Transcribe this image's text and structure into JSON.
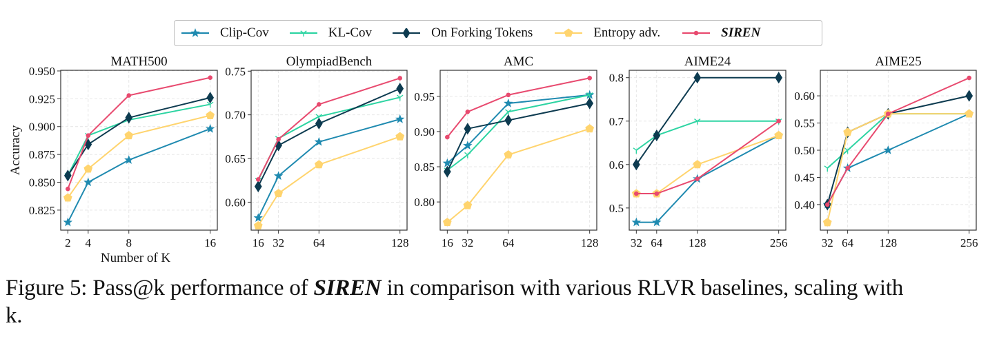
{
  "legend": [
    {
      "name": "Clip-Cov",
      "color": "#1f8ab0",
      "marker": "star"
    },
    {
      "name": "KL-Cov",
      "color": "#2dd4a2",
      "marker": "tri"
    },
    {
      "name": "On Forking Tokens",
      "color": "#0d3b50",
      "marker": "diamond"
    },
    {
      "name": "Entropy adv.",
      "color": "#ffd46e",
      "marker": "pentagon"
    },
    {
      "name": "SIREN",
      "color": "#e84a6f",
      "marker": "dot"
    }
  ],
  "caption": {
    "prefix": "Figure 5: Pass@k performance of ",
    "emph": "SIREN",
    "suffix": " in comparison with various RLVR baselines, scaling with",
    "line2": "k."
  },
  "chart_data": [
    {
      "type": "line",
      "title": "MATH500",
      "xlabel": "Number of K",
      "ylabel": "Accuracy",
      "x": [
        2,
        4,
        8,
        16
      ],
      "xticks": [
        "2",
        "4",
        "8",
        "16"
      ],
      "xlim": [
        1.3,
        16.7
      ],
      "yticks": [
        "0.825",
        "0.850",
        "0.875",
        "0.900",
        "0.925",
        "0.950"
      ],
      "ytick_values": [
        0.825,
        0.85,
        0.875,
        0.9,
        0.925,
        0.95
      ],
      "ylim": [
        0.807,
        0.9506
      ],
      "grid": true,
      "series": [
        {
          "name": "Clip-Cov",
          "values": [
            0.814,
            0.85,
            0.87,
            0.898
          ]
        },
        {
          "name": "KL-Cov",
          "values": [
            0.856,
            0.892,
            0.906,
            0.92
          ]
        },
        {
          "name": "On Forking Tokens",
          "values": [
            0.856,
            0.884,
            0.908,
            0.926
          ]
        },
        {
          "name": "Entropy adv.",
          "values": [
            0.836,
            0.862,
            0.892,
            0.91
          ]
        },
        {
          "name": "SIREN",
          "values": [
            0.844,
            0.892,
            0.928,
            0.944
          ]
        }
      ]
    },
    {
      "type": "line",
      "title": "OlympiadBench",
      "xlabel": "",
      "ylabel": "",
      "x": [
        16,
        32,
        64,
        128
      ],
      "xticks": [
        "16",
        "32",
        "64",
        "128"
      ],
      "xlim": [
        10.4,
        133.6
      ],
      "yticks": [
        "0.60",
        "0.65",
        "0.70",
        "0.75"
      ],
      "ytick_values": [
        0.6,
        0.65,
        0.7,
        0.75
      ],
      "ylim": [
        0.568,
        0.751
      ],
      "grid": true,
      "series": [
        {
          "name": "Clip-Cov",
          "values": [
            0.582,
            0.63,
            0.669,
            0.695
          ]
        },
        {
          "name": "KL-Cov",
          "values": [
            0.625,
            0.673,
            0.698,
            0.72
          ]
        },
        {
          "name": "On Forking Tokens",
          "values": [
            0.618,
            0.665,
            0.69,
            0.73
          ]
        },
        {
          "name": "Entropy adv.",
          "values": [
            0.573,
            0.61,
            0.643,
            0.675
          ]
        },
        {
          "name": "SIREN",
          "values": [
            0.626,
            0.672,
            0.712,
            0.742
          ]
        }
      ]
    },
    {
      "type": "line",
      "title": "AMC",
      "xlabel": "",
      "ylabel": "",
      "x": [
        16,
        32,
        64,
        128
      ],
      "xticks": [
        "16",
        "32",
        "64",
        "128"
      ],
      "xlim": [
        10.4,
        133.6
      ],
      "yticks": [
        "0.80",
        "0.85",
        "0.90",
        "0.95"
      ],
      "ytick_values": [
        0.8,
        0.85,
        0.9,
        0.95
      ],
      "ylim": [
        0.76,
        0.987
      ],
      "grid": true,
      "series": [
        {
          "name": "Clip-Cov",
          "values": [
            0.855,
            0.88,
            0.94,
            0.952
          ]
        },
        {
          "name": "KL-Cov",
          "values": [
            0.845,
            0.867,
            0.928,
            0.952
          ]
        },
        {
          "name": "On Forking Tokens",
          "values": [
            0.843,
            0.904,
            0.916,
            0.94
          ]
        },
        {
          "name": "Entropy adv.",
          "values": [
            0.771,
            0.795,
            0.867,
            0.904
          ]
        },
        {
          "name": "SIREN",
          "values": [
            0.892,
            0.928,
            0.952,
            0.976
          ]
        }
      ]
    },
    {
      "type": "line",
      "title": "AIME24",
      "xlabel": "",
      "ylabel": "",
      "x": [
        32,
        64,
        128,
        256
      ],
      "xticks": [
        "32",
        "64",
        "128",
        "256"
      ],
      "xlim": [
        20.8,
        267.2
      ],
      "yticks": [
        "0.5",
        "0.6",
        "0.7",
        "0.8"
      ],
      "ytick_values": [
        0.5,
        0.6,
        0.7,
        0.8
      ],
      "ylim": [
        0.449,
        0.817
      ],
      "grid": true,
      "series": [
        {
          "name": "Clip-Cov",
          "values": [
            0.467,
            0.467,
            0.567,
            0.667
          ]
        },
        {
          "name": "KL-Cov",
          "values": [
            0.633,
            0.667,
            0.7,
            0.7
          ]
        },
        {
          "name": "On Forking Tokens",
          "values": [
            0.6,
            0.667,
            0.8,
            0.8
          ]
        },
        {
          "name": "Entropy adv.",
          "values": [
            0.533,
            0.533,
            0.6,
            0.667
          ]
        },
        {
          "name": "SIREN",
          "values": [
            0.533,
            0.533,
            0.567,
            0.7
          ]
        }
      ]
    },
    {
      "type": "line",
      "title": "AIME25",
      "xlabel": "",
      "ylabel": "",
      "x": [
        32,
        64,
        128,
        256
      ],
      "xticks": [
        "32",
        "64",
        "128",
        "256"
      ],
      "xlim": [
        20.8,
        267.2
      ],
      "yticks": [
        "0.40",
        "0.45",
        "0.50",
        "0.55",
        "0.60"
      ],
      "ytick_values": [
        0.4,
        0.45,
        0.5,
        0.55,
        0.6
      ],
      "ylim": [
        0.353,
        0.647
      ],
      "grid": true,
      "series": [
        {
          "name": "Clip-Cov",
          "values": [
            0.4,
            0.467,
            0.5,
            0.567
          ]
        },
        {
          "name": "KL-Cov",
          "values": [
            0.467,
            0.5,
            0.567,
            0.567
          ]
        },
        {
          "name": "On Forking Tokens",
          "values": [
            0.4,
            0.533,
            0.567,
            0.6
          ]
        },
        {
          "name": "Entropy adv.",
          "values": [
            0.367,
            0.533,
            0.567,
            0.567
          ]
        },
        {
          "name": "SIREN",
          "values": [
            0.4,
            0.467,
            0.567,
            0.633
          ]
        }
      ]
    }
  ]
}
